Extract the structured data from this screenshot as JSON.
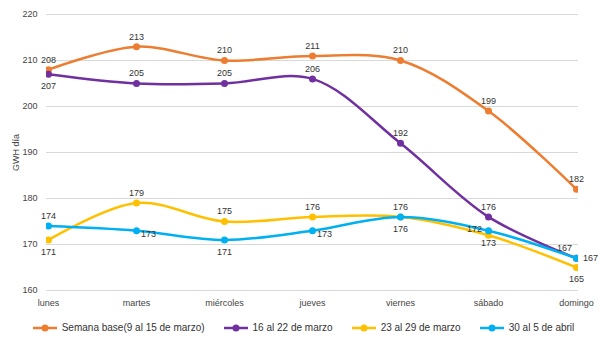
{
  "chart_data": {
    "type": "line",
    "categories": [
      "lunes",
      "martes",
      "miércoles",
      "jueves",
      "viernes",
      "sábado",
      "domingo"
    ],
    "y_label": "GWH día",
    "ylim": [
      160,
      220
    ],
    "yticks": [
      160,
      170,
      180,
      190,
      200,
      210,
      220
    ],
    "grid": true,
    "legend": "bottom",
    "data_labels": true,
    "marker": "circle",
    "series": [
      {
        "name": "Semana base(9 al 15 de marzo)",
        "color": "#ED7D31",
        "values": [
          208,
          213,
          210,
          211,
          210,
          199,
          182
        ]
      },
      {
        "name": "16 al 22 de marzo",
        "color": "#7030A0",
        "values": [
          207,
          205,
          205,
          206,
          192,
          176,
          167
        ]
      },
      {
        "name": "23 al 29 de marzo",
        "color": "#FFC000",
        "values": [
          171,
          179,
          175,
          176,
          176,
          172,
          165
        ]
      },
      {
        "name": "30 al 5 de abril",
        "color": "#00B0F0",
        "values": [
          174,
          173,
          171,
          173,
          176,
          173,
          167
        ]
      }
    ]
  }
}
